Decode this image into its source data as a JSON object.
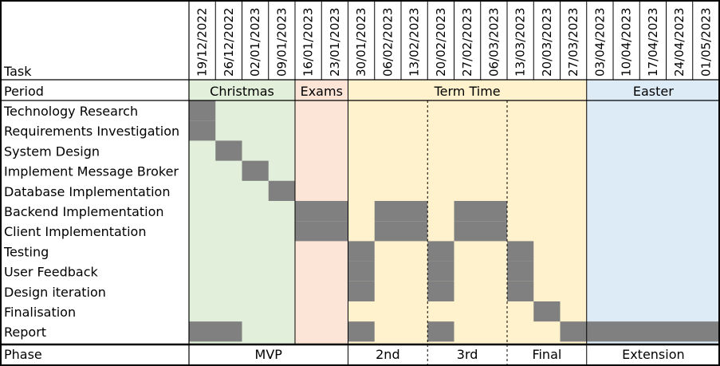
{
  "chart_data": {
    "type": "gantt",
    "header_label": "Task",
    "period_label": "Period",
    "phase_label": "Phase",
    "dates": [
      "19/12/2022",
      "26/12/2022",
      "02/01/2023",
      "09/01/2023",
      "16/01/2023",
      "23/01/2023",
      "30/01/2023",
      "06/02/2023",
      "13/02/2023",
      "20/02/2023",
      "27/02/2023",
      "06/03/2023",
      "13/03/2023",
      "20/03/2023",
      "27/03/2023",
      "03/04/2023",
      "10/04/2023",
      "17/04/2023",
      "24/04/2023",
      "01/05/2023"
    ],
    "periods": [
      {
        "label": "Christmas",
        "start": 0,
        "end": 3,
        "color": "#e2efda"
      },
      {
        "label": "Exams",
        "start": 4,
        "end": 5,
        "color": "#fce4d6"
      },
      {
        "label": "Term Time",
        "start": 6,
        "end": 14,
        "color": "#fff2cc"
      },
      {
        "label": "Easter",
        "start": 15,
        "end": 19,
        "color": "#ddebf7"
      }
    ],
    "phases": [
      {
        "label": "MVP",
        "start": 0,
        "end": 5
      },
      {
        "label": "2nd",
        "start": 6,
        "end": 8
      },
      {
        "label": "3rd",
        "start": 9,
        "end": 11
      },
      {
        "label": "Final",
        "start": 12,
        "end": 14
      },
      {
        "label": "Extension",
        "start": 15,
        "end": 19
      }
    ],
    "tasks": [
      {
        "name": "Technology Research",
        "spans": [
          [
            0,
            0
          ]
        ]
      },
      {
        "name": "Requirements Investigation",
        "spans": [
          [
            0,
            0
          ]
        ]
      },
      {
        "name": "System Design",
        "spans": [
          [
            1,
            1
          ]
        ]
      },
      {
        "name": "Implement Message Broker",
        "spans": [
          [
            2,
            2
          ]
        ]
      },
      {
        "name": "Database Implementation",
        "spans": [
          [
            3,
            3
          ]
        ]
      },
      {
        "name": "Backend Implementation",
        "spans": [
          [
            4,
            5
          ],
          [
            7,
            8
          ],
          [
            10,
            11
          ]
        ]
      },
      {
        "name": "Client Implementation",
        "spans": [
          [
            4,
            5
          ],
          [
            7,
            8
          ],
          [
            10,
            11
          ]
        ]
      },
      {
        "name": "Testing",
        "spans": [
          [
            6,
            6
          ],
          [
            9,
            9
          ],
          [
            12,
            12
          ]
        ]
      },
      {
        "name": "User Feedback",
        "spans": [
          [
            6,
            6
          ],
          [
            9,
            9
          ],
          [
            12,
            12
          ]
        ]
      },
      {
        "name": "Design iteration",
        "spans": [
          [
            6,
            6
          ],
          [
            9,
            9
          ],
          [
            12,
            12
          ]
        ]
      },
      {
        "name": "Finalisation",
        "spans": [
          [
            13,
            13
          ]
        ]
      },
      {
        "name": "Report",
        "spans": [
          [
            0,
            1
          ],
          [
            6,
            6
          ],
          [
            9,
            9
          ],
          [
            14,
            19
          ]
        ]
      }
    ],
    "bar_color": "#808080"
  }
}
